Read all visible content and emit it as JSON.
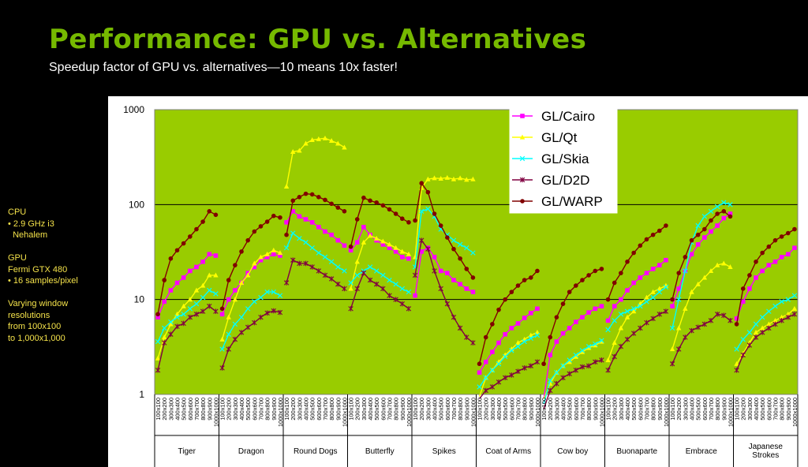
{
  "page": {
    "title": "Performance:  GPU vs. Alternatives",
    "subtitle": "Speedup factor of GPU vs. alternatives—10 means 10x faster!"
  },
  "sidebar": {
    "blocks": [
      [
        "CPU",
        "• 2.9 GHz i3",
        "  Nehalem"
      ],
      [
        "GPU",
        "Fermi GTX 480",
        "• 16 samples/pixel"
      ],
      [
        "Varying window",
        "resolutions",
        "from 100x100",
        "to 1,000x1,000"
      ]
    ]
  },
  "chart_data": {
    "type": "line",
    "yscale": "log",
    "ylim": [
      1,
      1000
    ],
    "yticks": [
      1,
      10,
      100,
      1000
    ],
    "ytick_labels": [
      "1",
      "10",
      "100",
      "1000"
    ],
    "grid": true,
    "legend": "top-right",
    "colors": {
      "plot_bg": "#99cc00",
      "GL/Cairo": "#ff00ff",
      "GL/Qt": "#ffff00",
      "GL/Skia": "#00ffff",
      "GL/D2D": "#800040",
      "GL/WARP": "#800000"
    },
    "x_tick_labels": [
      "100x100",
      "200x200",
      "300x300",
      "400x400",
      "500x500",
      "600x600",
      "700x700",
      "800x800",
      "900x900",
      "1000x1000"
    ],
    "groups": [
      "Tiger",
      "Dragon",
      "Round Dogs",
      "Butterfly",
      "Spikes",
      "Coat of Arms",
      "Cow boy",
      "Buonaparte",
      "Embrace",
      "Japanese Strokes"
    ],
    "series": [
      {
        "name": "GL/Cairo",
        "marker": "square",
        "values": [
          [
            6.5,
            9.5,
            12.5,
            15,
            17,
            20,
            22,
            25,
            30,
            29
          ],
          [
            7,
            10,
            12.5,
            15,
            19,
            22,
            26,
            28,
            30,
            29
          ],
          [
            65,
            85,
            75,
            70,
            65,
            58,
            52,
            48,
            42,
            37
          ],
          [
            33,
            40,
            58,
            48,
            42,
            38,
            35,
            32,
            28,
            27
          ],
          [
            11,
            32,
            35,
            28,
            20,
            19,
            16,
            14.5,
            13,
            12
          ],
          [
            1.7,
            2.2,
            2.8,
            3.5,
            4.3,
            5,
            5.6,
            6.4,
            7.2,
            8
          ],
          [
            0.9,
            2.6,
            3.6,
            4.4,
            5,
            5.8,
            6.5,
            7.3,
            8,
            8.5
          ],
          [
            6,
            8.5,
            10,
            12.5,
            15,
            17,
            19,
            21,
            23,
            26
          ],
          [
            8.5,
            13,
            20,
            30,
            38,
            45,
            52,
            60,
            72,
            80
          ],
          [
            6.3,
            9.5,
            13,
            17,
            20,
            23,
            25,
            28,
            30,
            35
          ]
        ]
      },
      {
        "name": "GL/Qt",
        "marker": "triangle",
        "values": [
          [
            2.4,
            4,
            5.5,
            7,
            8.5,
            10,
            12.5,
            14,
            18,
            18
          ],
          [
            3.8,
            6.5,
            10,
            15,
            18,
            24,
            28,
            30,
            33,
            31
          ],
          [
            155,
            360,
            370,
            440,
            480,
            490,
            500,
            470,
            440,
            400
          ],
          [
            13,
            25,
            40,
            47,
            44,
            41,
            38,
            35,
            32,
            30
          ],
          [
            28,
            150,
            185,
            190,
            188,
            192,
            185,
            190,
            183,
            185
          ],
          [
            0.95,
            1.5,
            1.8,
            2.2,
            2.6,
            3,
            3.5,
            3.8,
            4.2,
            4.5
          ],
          [
            0.9,
            1.3,
            1.7,
            2,
            2.2,
            2.5,
            2.8,
            3.1,
            3.3,
            3.6
          ],
          [
            2.3,
            3.5,
            5,
            6.5,
            7.5,
            9,
            10.5,
            12,
            13,
            14
          ],
          [
            3,
            5,
            8,
            12,
            14.5,
            17,
            20,
            23,
            24,
            22
          ],
          [
            2.1,
            2.7,
            3.5,
            4.5,
            5,
            5.5,
            6,
            6.5,
            7,
            8
          ]
        ]
      },
      {
        "name": "GL/Skia",
        "marker": "x",
        "values": [
          [
            3.6,
            5,
            5.8,
            6.5,
            7,
            8,
            9,
            10.5,
            12.5,
            11.5
          ],
          [
            3,
            4.3,
            5.5,
            6.5,
            8,
            9.5,
            10.5,
            12,
            12,
            11
          ],
          [
            35,
            50,
            44,
            40,
            35,
            31,
            28,
            25,
            22,
            20
          ],
          [
            15,
            18,
            20,
            22,
            20,
            18,
            16,
            14.5,
            13,
            12
          ],
          [
            22,
            85,
            90,
            75,
            55,
            48,
            42,
            38,
            35,
            31
          ],
          [
            1.2,
            1.5,
            1.8,
            2.1,
            2.5,
            2.9,
            3.2,
            3.6,
            3.9,
            4.2
          ],
          [
            0.8,
            1.4,
            1.7,
            2,
            2.3,
            2.6,
            2.9,
            3.2,
            3.4,
            3.7
          ],
          [
            4.8,
            6,
            7,
            7.5,
            8,
            8.5,
            9.5,
            10.5,
            12,
            13.5
          ],
          [
            5,
            10,
            20,
            40,
            60,
            75,
            85,
            95,
            105,
            100
          ],
          [
            3,
            3.8,
            4.5,
            5.5,
            6.5,
            7.5,
            8.5,
            9.5,
            10,
            11
          ]
        ]
      },
      {
        "name": "GL/D2D",
        "marker": "star",
        "values": [
          [
            1.8,
            3.5,
            4.3,
            5.2,
            5.6,
            6.5,
            7,
            7.5,
            8.5,
            7.5
          ],
          [
            1.9,
            3,
            3.8,
            4.5,
            5.1,
            5.7,
            6.5,
            7.2,
            7.6,
            7.3
          ],
          [
            15,
            26,
            24,
            24,
            22,
            20,
            18,
            16.5,
            14.5,
            13
          ],
          [
            8,
            13,
            19,
            16,
            14.5,
            13,
            11,
            10,
            9,
            8
          ],
          [
            18,
            42,
            34,
            20,
            13,
            9,
            6.5,
            5,
            4,
            3.5
          ],
          [
            0.9,
            1.1,
            1.2,
            1.35,
            1.5,
            1.6,
            1.75,
            1.9,
            2,
            2.2
          ],
          [
            0.7,
            1.1,
            1.3,
            1.5,
            1.65,
            1.8,
            1.95,
            2,
            2.2,
            2.3
          ],
          [
            1.8,
            2.5,
            3.2,
            3.8,
            4.4,
            5,
            5.7,
            6.3,
            7,
            7.5
          ],
          [
            2.1,
            3,
            4,
            4.7,
            5.1,
            5.5,
            6,
            7,
            6.8,
            6
          ],
          [
            1.8,
            2.6,
            3.3,
            4,
            4.5,
            5,
            5.5,
            6,
            6.5,
            7
          ]
        ]
      },
      {
        "name": "GL/WARP",
        "marker": "circle",
        "values": [
          [
            7,
            16,
            27,
            33,
            39,
            46,
            55,
            66,
            85,
            78
          ],
          [
            8,
            16,
            23,
            32,
            42,
            52,
            59,
            66,
            76,
            73
          ],
          [
            48,
            110,
            120,
            130,
            128,
            120,
            112,
            102,
            93,
            85
          ],
          [
            36,
            70,
            118,
            110,
            105,
            98,
            89,
            80,
            71,
            65
          ],
          [
            68,
            168,
            135,
            80,
            60,
            45,
            34,
            27,
            21,
            17
          ],
          [
            2.1,
            4,
            5.5,
            7.8,
            10,
            12,
            14,
            16,
            17,
            20
          ],
          [
            2.1,
            4,
            6.5,
            9,
            12,
            14,
            16,
            18,
            20,
            21
          ],
          [
            10,
            15,
            19,
            25,
            31,
            37,
            43,
            48,
            53,
            60
          ],
          [
            10,
            19,
            28,
            42,
            48,
            55,
            68,
            80,
            85,
            75
          ],
          [
            5.5,
            13,
            18,
            25,
            31,
            36,
            42,
            46,
            50,
            55
          ]
        ]
      }
    ]
  }
}
